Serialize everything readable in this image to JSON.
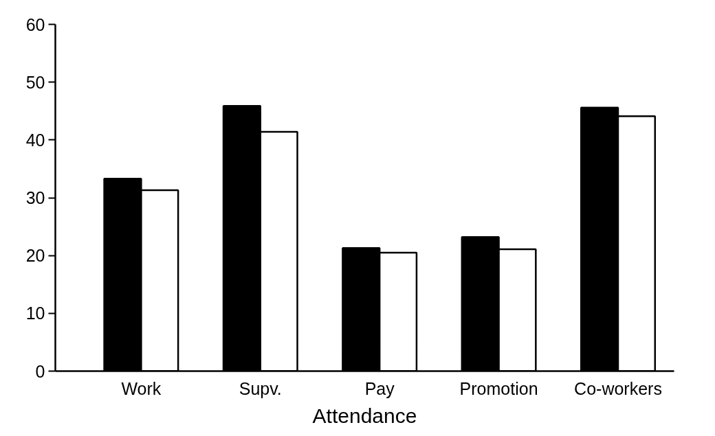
{
  "chart_data": {
    "type": "bar",
    "xlabel": "Attendance",
    "categories": [
      "Work",
      "Supv.",
      "Pay",
      "Promotion",
      "Co-workers"
    ],
    "series": [
      {
        "color": "#000000",
        "values": [
          33.3,
          45.9,
          21.3,
          23.2,
          45.6
        ]
      },
      {
        "color": "#ffffff",
        "values": [
          31.3,
          41.4,
          20.5,
          21.1,
          44.1
        ]
      }
    ],
    "ylim": [
      0,
      60
    ],
    "yticks": [
      0,
      10,
      20,
      30,
      40,
      50,
      60
    ],
    "grid": false
  }
}
